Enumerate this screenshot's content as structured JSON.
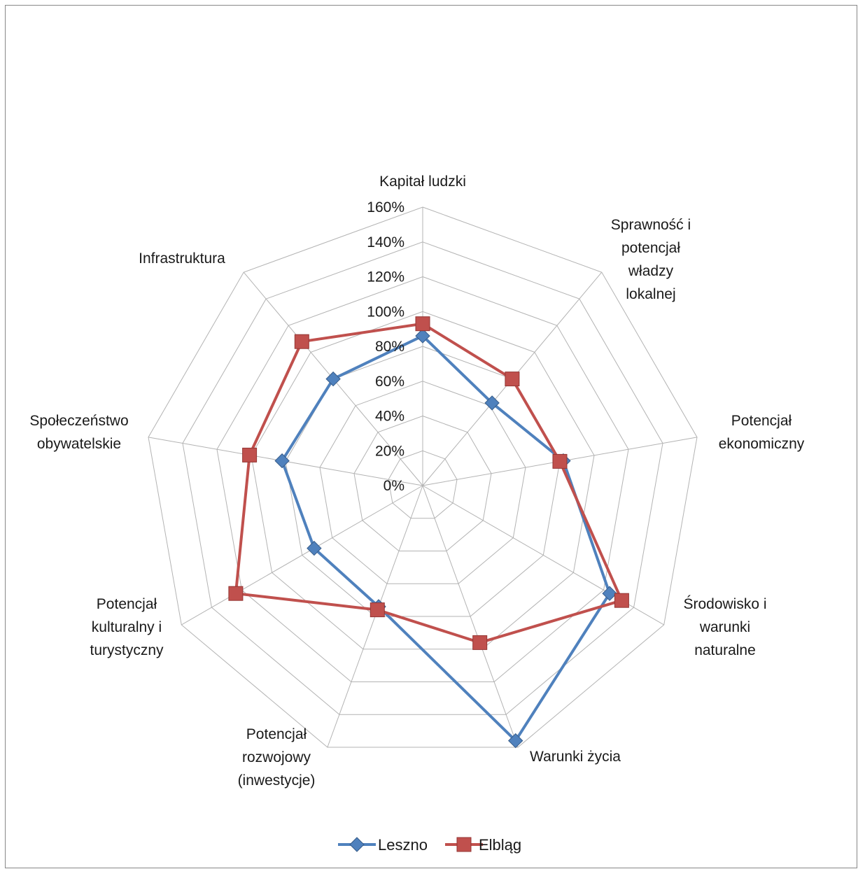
{
  "chart_data": {
    "type": "radar",
    "title": "",
    "categories": [
      [
        "Kapitał ludzki"
      ],
      [
        "Sprawność i",
        "potencjał",
        "władzy",
        "lokalnej"
      ],
      [
        "Potencjał",
        "ekonomiczny"
      ],
      [
        "Środowisko i",
        "warunki",
        "naturalne"
      ],
      [
        "Warunki życia"
      ],
      [
        "Potencjał",
        "rozwojowy",
        "(inwestycje)"
      ],
      [
        "Potencjał",
        "kulturalny i",
        "turystyczny"
      ],
      [
        "Społeczeństwo",
        "obywatelskie"
      ],
      [
        "Infrastruktura"
      ]
    ],
    "axis": {
      "min": 0,
      "max": 1.6,
      "step": 0.2,
      "tick_labels": [
        "0%",
        "20%",
        "40%",
        "60%",
        "80%",
        "100%",
        "120%",
        "140%",
        "160%"
      ],
      "grid": true
    },
    "series": [
      {
        "name": "Leszno",
        "color": "#4F81BD",
        "marker": "diamond",
        "values": [
          0.86,
          0.62,
          0.82,
          1.24,
          1.56,
          0.74,
          0.72,
          0.82,
          0.8
        ]
      },
      {
        "name": "Elbląg",
        "color": "#C0504D",
        "marker": "square",
        "values": [
          0.93,
          0.8,
          0.8,
          1.32,
          0.96,
          0.76,
          1.24,
          1.01,
          1.08
        ]
      }
    ],
    "legend": {
      "position": "bottom"
    }
  }
}
